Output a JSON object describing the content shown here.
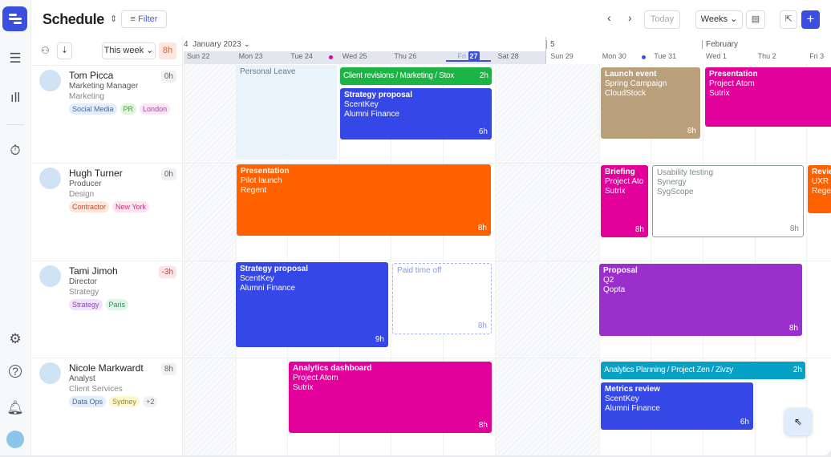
{
  "header": {
    "title": "Schedule",
    "filter": "Filter",
    "today": "Today",
    "view": "Weeks"
  },
  "people_panel": {
    "range": "This week",
    "total_hours": "8h"
  },
  "calendar": {
    "week_label": "4",
    "month_label": "January 2023",
    "week2_label": "5",
    "month2_label": "February",
    "days": [
      "Sun 22",
      "Mon 23",
      "Tue 24",
      "Wed 25",
      "Thu 26",
      "Fri",
      "Sat 28",
      "Sun 29",
      "Mon 30",
      "Tue 31",
      "Wed 1",
      "Thu 2",
      "Fri 3"
    ],
    "today_number": "27"
  },
  "people": [
    {
      "name": "Tom Picca",
      "role": "Marketing Manager",
      "dept": "Marketing",
      "hours": "0h",
      "tags": [
        "Social Media",
        "PR",
        "London"
      ]
    },
    {
      "name": "Hugh Turner",
      "role": "Producer",
      "dept": "Design",
      "hours": "0h",
      "tags": [
        "Contractor",
        "New York"
      ]
    },
    {
      "name": "Tami Jimoh",
      "role": "Director",
      "dept": "Strategy",
      "hours": "-3h",
      "tags": [
        "Strategy",
        "Paris"
      ]
    },
    {
      "name": "Nicole Markwardt",
      "role": "Analyst",
      "dept": "Client Services",
      "hours": "8h",
      "tags": [
        "Data Ops",
        "Sydney",
        "+2"
      ]
    }
  ],
  "events": [
    {
      "lines": [
        "Personal Leave"
      ],
      "hours": "",
      "color": "#e8f3fc",
      "kind": "leave"
    },
    {
      "lines": [
        "Client revisions / Marketing / Stox"
      ],
      "hours": "2h",
      "color": "#1db446"
    },
    {
      "lines": [
        "Strategy proposal",
        "ScentKey",
        "Alumni Finance"
      ],
      "hours": "6h",
      "color": "#3547e6"
    },
    {
      "lines": [
        "Launch event",
        "Spring Campaign",
        "CloudStock"
      ],
      "hours": "8h",
      "color": "#b9a07a"
    },
    {
      "lines": [
        "Presentation",
        "Project Atom",
        "Sutrix"
      ],
      "hours": "",
      "color": "#e2019a"
    },
    {
      "lines": [
        "Presentation",
        "Pilot launch",
        "Regent"
      ],
      "hours": "8h",
      "color": "#ff6000"
    },
    {
      "lines": [
        "Briefing",
        "Project Ato",
        "Sutrix"
      ],
      "hours": "8h",
      "color": "#e2019a"
    },
    {
      "lines": [
        "Usability testing",
        "Synergy",
        "SygScope"
      ],
      "hours": "8h",
      "color": "#ffffff",
      "kind": "outline"
    },
    {
      "lines": [
        "Revie",
        "UXR",
        "Rege"
      ],
      "hours": "",
      "color": "#ff6000"
    },
    {
      "lines": [
        "Strategy proposal",
        "ScentKey",
        "Alumni Finance"
      ],
      "hours": "9h",
      "color": "#3547e6"
    },
    {
      "lines": [
        "Paid time off"
      ],
      "hours": "8h",
      "color": "#ffffff",
      "kind": "pto"
    },
    {
      "lines": [
        "Proposal",
        "Q2",
        "Qopta"
      ],
      "hours": "8h",
      "color": "#9a2fcc"
    },
    {
      "lines": [
        "Analytics dashboard",
        "Project Atom",
        "Sutrix"
      ],
      "hours": "8h",
      "color": "#e2019a"
    },
    {
      "lines": [
        "Analytics Planning / Project Zen / Zivzy"
      ],
      "hours": "2h",
      "color": "#06a1c4"
    },
    {
      "lines": [
        "Metrics review",
        "ScentKey",
        "Alumni Finance"
      ],
      "hours": "6h",
      "color": "#3547e6"
    }
  ],
  "colors": {
    "accent": "#3a4fe0"
  }
}
